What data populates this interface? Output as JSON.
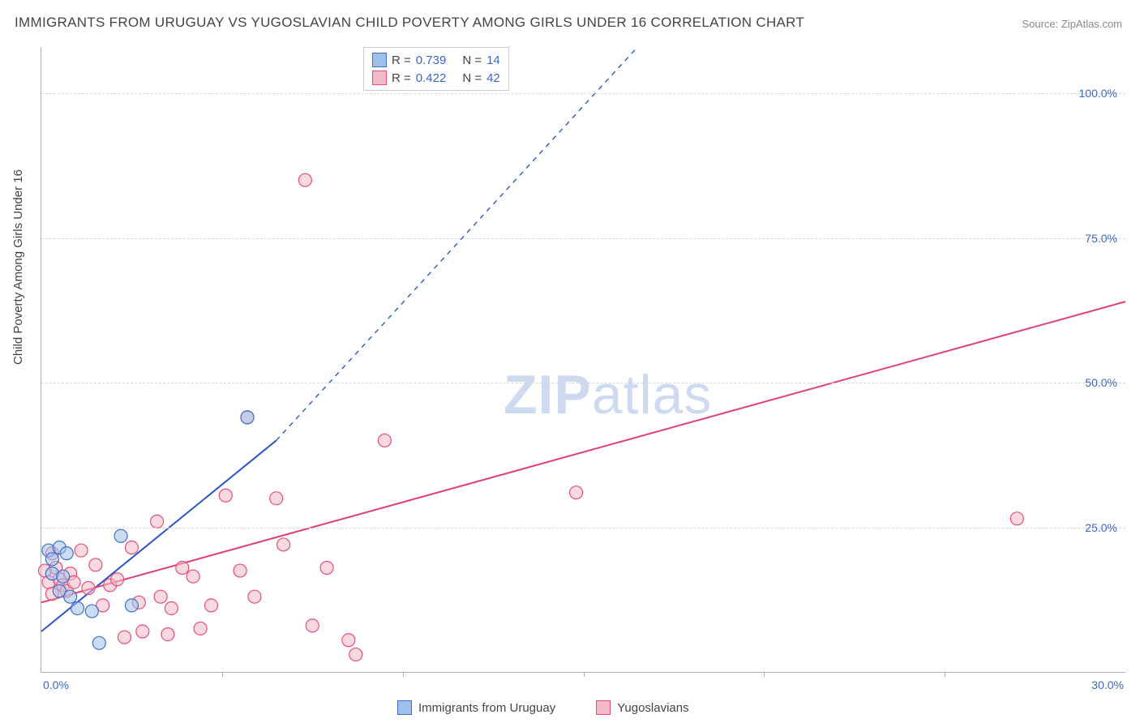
{
  "title": "IMMIGRANTS FROM URUGUAY VS YUGOSLAVIAN CHILD POVERTY AMONG GIRLS UNDER 16 CORRELATION CHART",
  "source": "Source: ZipAtlas.com",
  "watermark": {
    "bold": "ZIP",
    "light": "atlas"
  },
  "y_axis_label": "Child Poverty Among Girls Under 16",
  "chart": {
    "type": "scatter",
    "xlim": [
      0.0,
      30.0
    ],
    "ylim": [
      0.0,
      108.0
    ],
    "x_ticks": [
      0.0,
      30.0
    ],
    "x_tick_labels": [
      "0.0%",
      "30.0%"
    ],
    "x_minor_ticks": [
      5.0,
      10.0,
      15.0,
      20.0,
      25.0
    ],
    "y_ticks": [
      25.0,
      50.0,
      75.0,
      100.0
    ],
    "y_tick_labels": [
      "25.0%",
      "50.0%",
      "75.0%",
      "100.0%"
    ],
    "grid_color": "#d8d8d8",
    "background_color": "#ffffff",
    "axis_color": "#b0b0b0",
    "marker_radius": 8,
    "marker_opacity": 0.55,
    "line_width": 2,
    "series": [
      {
        "name": "Immigrants from Uruguay",
        "color_fill": "#9ec1ec",
        "color_stroke": "#3f6fc8",
        "line_color": "#2b56c5",
        "R": 0.739,
        "N": 14,
        "trend": {
          "x1": 0.0,
          "y1": 7.0,
          "x2": 6.5,
          "y2": 40.0,
          "dash_to": {
            "x2": 16.5,
            "y2": 108.0
          }
        },
        "points": [
          [
            0.2,
            21.0
          ],
          [
            0.3,
            19.5
          ],
          [
            0.3,
            17.0
          ],
          [
            0.5,
            21.5
          ],
          [
            0.5,
            14.0
          ],
          [
            0.6,
            16.5
          ],
          [
            0.7,
            20.5
          ],
          [
            0.8,
            13.0
          ],
          [
            1.0,
            11.0
          ],
          [
            1.4,
            10.5
          ],
          [
            1.6,
            5.0
          ],
          [
            2.2,
            23.5
          ],
          [
            2.5,
            11.5
          ],
          [
            5.7,
            44.0
          ]
        ]
      },
      {
        "name": "Yugoslavians",
        "color_fill": "#f4b9c7",
        "color_stroke": "#e64e7a",
        "line_color": "#e23f72",
        "R": 0.422,
        "N": 42,
        "trend": {
          "x1": 0.0,
          "y1": 12.0,
          "x2": 30.0,
          "y2": 64.0
        },
        "points": [
          [
            0.1,
            17.5
          ],
          [
            0.2,
            15.5
          ],
          [
            0.3,
            20.5
          ],
          [
            0.3,
            13.5
          ],
          [
            0.4,
            18.0
          ],
          [
            0.5,
            16.0
          ],
          [
            0.6,
            15.0
          ],
          [
            0.7,
            14.0
          ],
          [
            0.8,
            17.0
          ],
          [
            0.9,
            15.5
          ],
          [
            1.1,
            21.0
          ],
          [
            1.3,
            14.5
          ],
          [
            1.5,
            18.5
          ],
          [
            1.7,
            11.5
          ],
          [
            1.9,
            15.0
          ],
          [
            2.1,
            16.0
          ],
          [
            2.3,
            6.0
          ],
          [
            2.5,
            21.5
          ],
          [
            2.7,
            12.0
          ],
          [
            2.8,
            7.0
          ],
          [
            3.2,
            26.0
          ],
          [
            3.3,
            13.0
          ],
          [
            3.5,
            6.5
          ],
          [
            3.6,
            11.0
          ],
          [
            3.9,
            18.0
          ],
          [
            4.2,
            16.5
          ],
          [
            4.4,
            7.5
          ],
          [
            4.7,
            11.5
          ],
          [
            5.1,
            30.5
          ],
          [
            5.5,
            17.5
          ],
          [
            5.7,
            44.0
          ],
          [
            5.9,
            13.0
          ],
          [
            6.5,
            30.0
          ],
          [
            6.7,
            22.0
          ],
          [
            7.5,
            8.0
          ],
          [
            7.9,
            18.0
          ],
          [
            8.5,
            5.5
          ],
          [
            8.7,
            3.0
          ],
          [
            9.5,
            40.0
          ],
          [
            7.3,
            85.0
          ],
          [
            14.8,
            31.0
          ],
          [
            27.0,
            26.5
          ]
        ]
      }
    ]
  },
  "legend_top": {
    "rows": [
      {
        "swatch_fill": "#9ec1ec",
        "swatch_stroke": "#3f6fc8",
        "R_label": "R =",
        "R": "0.739",
        "N_label": "N =",
        "N": "14"
      },
      {
        "swatch_fill": "#f4b9c7",
        "swatch_stroke": "#e64e7a",
        "R_label": "R =",
        "R": "0.422",
        "N_label": "N =",
        "N": "42"
      }
    ]
  },
  "legend_bottom": {
    "items": [
      {
        "swatch_fill": "#9ec1ec",
        "swatch_stroke": "#3f6fc8",
        "label": "Immigrants from Uruguay"
      },
      {
        "swatch_fill": "#f4b9c7",
        "swatch_stroke": "#e64e7a",
        "label": "Yugoslavians"
      }
    ]
  }
}
